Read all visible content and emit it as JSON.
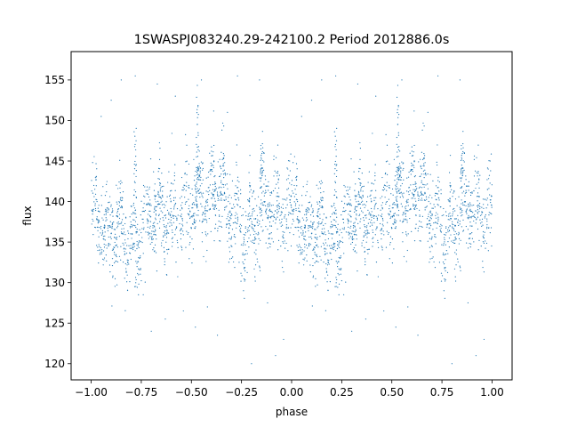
{
  "chart_data": {
    "type": "scatter",
    "title": "1SWASPJ083240.29-242100.2 Period 2012886.0s",
    "xlabel": "phase",
    "ylabel": "flux",
    "xlim": [
      -1.1,
      1.1
    ],
    "ylim": [
      118,
      158.5
    ],
    "xticks": [
      -1.0,
      -0.75,
      -0.5,
      -0.25,
      0.0,
      0.25,
      0.5,
      0.75,
      1.0
    ],
    "xtick_labels": [
      "−1.00",
      "−0.75",
      "−0.50",
      "−0.25",
      "0.00",
      "0.25",
      "0.50",
      "0.75",
      "1.00"
    ],
    "yticks": [
      120,
      125,
      130,
      135,
      140,
      145,
      150,
      155
    ],
    "ytick_labels": [
      "120",
      "125",
      "130",
      "135",
      "140",
      "145",
      "150",
      "155"
    ],
    "grid": false,
    "series": [
      {
        "color": "#1f77b4",
        "marker_size": 0.6,
        "points_per_half": 1500,
        "x_range": [
          -1.0,
          1.0
        ],
        "mirrored": true,
        "profile_x": [
          0.0,
          0.03,
          0.06,
          0.1,
          0.14,
          0.18,
          0.22,
          0.26,
          0.3,
          0.35,
          0.4,
          0.45,
          0.5,
          0.54,
          0.58,
          0.62,
          0.66,
          0.7,
          0.74,
          0.78,
          0.82,
          0.86,
          0.9,
          0.94,
          0.98,
          1.0
        ],
        "profile_y": [
          139.5,
          138.0,
          136.5,
          136.0,
          137.5,
          135.5,
          134.0,
          136.0,
          138.5,
          139.0,
          137.5,
          138.5,
          139.5,
          141.5,
          140.0,
          141.5,
          141.0,
          139.0,
          137.0,
          136.5,
          137.5,
          139.5,
          140.0,
          139.0,
          138.5,
          138.0
        ],
        "scatter_sd": 2.6,
        "outliers": [
          {
            "x": 0.05,
            "y": 150.5
          },
          {
            "x": 0.1,
            "y": 152.5
          },
          {
            "x": 0.15,
            "y": 155.0
          },
          {
            "x": 0.22,
            "y": 155.5
          },
          {
            "x": 0.26,
            "y": 128.5
          },
          {
            "x": 0.3,
            "y": 124.0
          },
          {
            "x": 0.33,
            "y": 154.5
          },
          {
            "x": 0.37,
            "y": 125.5
          },
          {
            "x": 0.42,
            "y": 153.0
          },
          {
            "x": 0.46,
            "y": 126.5
          },
          {
            "x": 0.52,
            "y": 124.5
          },
          {
            "x": 0.55,
            "y": 155.0
          },
          {
            "x": 0.58,
            "y": 127.0
          },
          {
            "x": 0.63,
            "y": 123.5
          },
          {
            "x": 0.68,
            "y": 151.0
          },
          {
            "x": 0.73,
            "y": 155.5
          },
          {
            "x": 0.76,
            "y": 129.0
          },
          {
            "x": 0.8,
            "y": 120.0
          },
          {
            "x": 0.84,
            "y": 155.0
          },
          {
            "x": 0.88,
            "y": 127.5
          },
          {
            "x": 0.92,
            "y": 121.0
          },
          {
            "x": 0.96,
            "y": 123.0
          },
          {
            "x": 0.99,
            "y": 145.0
          }
        ],
        "spikes": [
          {
            "x": 0.53,
            "y_min": 139.0,
            "y_max": 154.5
          },
          {
            "x": 0.22,
            "y_min": 136.0,
            "y_max": 150.0
          },
          {
            "x": 0.85,
            "y_min": 138.0,
            "y_max": 147.5
          }
        ]
      }
    ]
  }
}
